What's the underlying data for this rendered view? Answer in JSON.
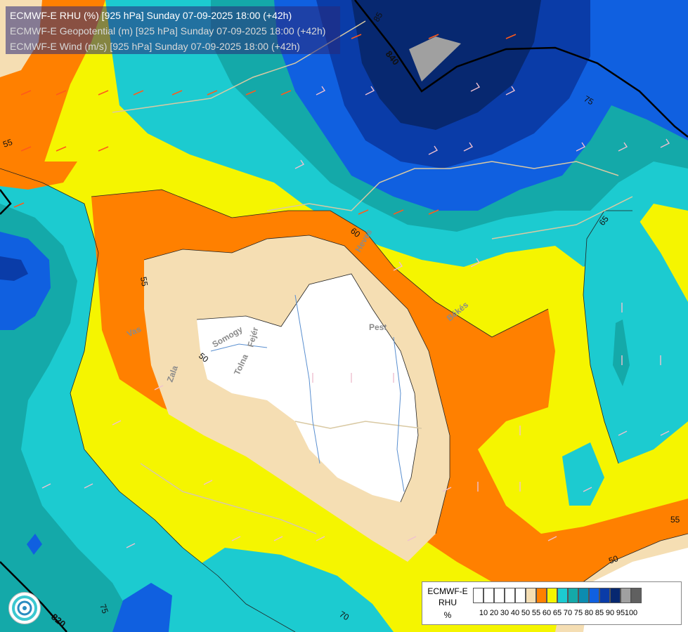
{
  "header": {
    "line1": "ECMWF-E RHU (%) [925 hPa] Sunday 07-09-2025 18:00 (+42h)",
    "line2": "ECMWF-E Geopotential (m) [925 hPa] Sunday 07-09-2025 18:00 (+42h)",
    "line3": "ECMWF-E Wind (m/s) [925 hPa] Sunday 07-09-2025 18:00 (+42h)"
  },
  "legend": {
    "line1": "ECMWF-E",
    "line2": "RHU",
    "line3": "%",
    "classes": [
      {
        "color": "#ffffff"
      },
      {
        "color": "#ffffff"
      },
      {
        "color": "#ffffff"
      },
      {
        "color": "#ffffff"
      },
      {
        "color": "#ffffff"
      },
      {
        "color": "#f5deb3"
      },
      {
        "color": "#ff8000"
      },
      {
        "color": "#f5f500"
      },
      {
        "color": "#1ccbd0"
      },
      {
        "color": "#14a9a9"
      },
      {
        "color": "#0c8cb0"
      },
      {
        "color": "#1060e0"
      },
      {
        "color": "#0a3ca8"
      },
      {
        "color": "#072870"
      },
      {
        "color": "#a0a0a0"
      },
      {
        "color": "#606060"
      }
    ],
    "ticks": [
      "10",
      "20",
      "30",
      "40",
      "50",
      "55",
      "60",
      "65",
      "70",
      "75",
      "80",
      "85",
      "90",
      "95",
      "100"
    ]
  },
  "map": {
    "colors": {
      "white": "#ffffff",
      "wheat": "#f5deb3",
      "orange": "#ff8000",
      "yellow": "#f5f500",
      "cyan": "#1ccbd0",
      "teal": "#14a9a9",
      "blue": "#1060e0",
      "darkblue": "#0a3ca8",
      "navy": "#072870",
      "gray": "#a0a0a0"
    },
    "place_labels": [
      "Pest",
      "Somogy",
      "Tolna",
      "Zala",
      "Vas",
      "Fejér",
      "Békés",
      "Heves"
    ],
    "isoline_labels": [
      "55",
      "55",
      "50",
      "60",
      "65",
      "75",
      "55",
      "50",
      "75",
      "70",
      "85"
    ],
    "geopotential_labels": [
      "840",
      "820"
    ]
  }
}
